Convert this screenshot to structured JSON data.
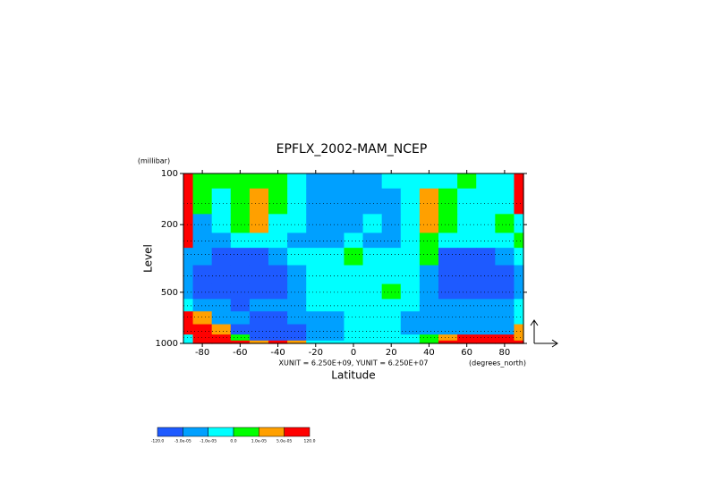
{
  "chart_data": {
    "type": "contour",
    "title": "EPFLX_2002-MAM_NCEP",
    "y_unit": "(millibar)",
    "y_label": "Level",
    "x_label": "Latitude",
    "x_unit": "(degrees_north)",
    "annotation": "XUNIT = 6.250E+09, YUNIT = 6.250E+07",
    "xlim": [
      -90,
      90
    ],
    "xticks": [
      -80,
      -60,
      -40,
      -20,
      0,
      20,
      40,
      60,
      80
    ],
    "ylim": [
      1000,
      100
    ],
    "yticks": [
      100,
      200,
      500,
      1000
    ],
    "log_y": true,
    "x": [
      -90,
      -80,
      -70,
      -60,
      -50,
      -40,
      -30,
      -20,
      -10,
      0,
      10,
      20,
      30,
      40,
      50,
      60,
      70,
      80,
      90
    ],
    "y": [
      100,
      150,
      200,
      250,
      300,
      400,
      500,
      600,
      700,
      850,
      925,
      1000
    ],
    "z": [
      [
        8e-05,
        5e-06,
        5e-06,
        5e-06,
        5e-06,
        5e-06,
        -5e-06,
        -3e-05,
        -3e-05,
        -3e-05,
        -3e-05,
        -5e-06,
        -5e-06,
        -5e-06,
        -5e-06,
        5e-06,
        -5e-06,
        -5e-06,
        8e-05
      ],
      [
        8e-05,
        5e-06,
        -5e-06,
        5e-06,
        3e-05,
        5e-06,
        -5e-06,
        -3e-05,
        -3e-05,
        -3e-05,
        -3e-05,
        -3e-05,
        -5e-06,
        3e-05,
        5e-06,
        -5e-06,
        -5e-06,
        -5e-06,
        8e-05
      ],
      [
        8e-05,
        -3e-05,
        -5e-06,
        5e-06,
        3e-05,
        -5e-06,
        -5e-06,
        -3e-05,
        -3e-05,
        -3e-05,
        -5e-06,
        -3e-05,
        -5e-06,
        3e-05,
        5e-06,
        -5e-06,
        -5e-06,
        5e-06,
        -5e-06
      ],
      [
        8e-05,
        -3e-05,
        -3e-05,
        -5e-06,
        -5e-06,
        -5e-06,
        -3e-05,
        -3e-05,
        -3e-05,
        -5e-06,
        -3e-05,
        -3e-05,
        -5e-06,
        5e-06,
        -5e-06,
        -5e-06,
        -5e-06,
        -5e-06,
        5e-06
      ],
      [
        -3e-05,
        -3e-05,
        -8e-05,
        -8e-05,
        -8e-05,
        -3e-05,
        -5e-06,
        -5e-06,
        -5e-06,
        5e-06,
        -5e-06,
        -5e-06,
        -5e-06,
        5e-06,
        -8e-05,
        -8e-05,
        -8e-05,
        -3e-05,
        -5e-06
      ],
      [
        -3e-05,
        -8e-05,
        -8e-05,
        -8e-05,
        -8e-05,
        -8e-05,
        -3e-05,
        -5e-06,
        -5e-06,
        -5e-06,
        -5e-06,
        -5e-06,
        -5e-06,
        -3e-05,
        -8e-05,
        -8e-05,
        -8e-05,
        -8e-05,
        -3e-05
      ],
      [
        -3e-05,
        -8e-05,
        -8e-05,
        -8e-05,
        -8e-05,
        -8e-05,
        -3e-05,
        -5e-06,
        -5e-06,
        -5e-06,
        -5e-06,
        5e-06,
        -5e-06,
        -3e-05,
        -8e-05,
        -8e-05,
        -8e-05,
        -8e-05,
        -3e-05
      ],
      [
        -5e-06,
        -3e-05,
        -3e-05,
        -8e-05,
        -3e-05,
        -3e-05,
        -3e-05,
        -5e-06,
        -5e-06,
        -5e-06,
        -5e-06,
        -5e-06,
        -5e-06,
        -3e-05,
        -3e-05,
        -3e-05,
        -3e-05,
        -3e-05,
        -5e-06
      ],
      [
        8e-05,
        3e-05,
        -3e-05,
        -3e-05,
        -8e-05,
        -8e-05,
        -3e-05,
        -3e-05,
        -3e-05,
        -5e-06,
        -5e-06,
        -5e-06,
        -3e-05,
        -3e-05,
        -3e-05,
        -3e-05,
        -3e-05,
        -3e-05,
        -5e-06
      ],
      [
        8e-05,
        8e-05,
        3e-05,
        -8e-05,
        -8e-05,
        -8e-05,
        -8e-05,
        -3e-05,
        -3e-05,
        -5e-06,
        -5e-06,
        -5e-06,
        -3e-05,
        -3e-05,
        -3e-05,
        -3e-05,
        -3e-05,
        -3e-05,
        3e-05
      ],
      [
        -5e-06,
        8e-05,
        8e-05,
        5e-06,
        -8e-05,
        -8e-05,
        -8e-05,
        -3e-05,
        -3e-05,
        -5e-06,
        -5e-06,
        -5e-06,
        -5e-06,
        5e-06,
        3e-05,
        8e-05,
        8e-05,
        8e-05,
        3e-05
      ],
      [
        -5e-06,
        8e-05,
        8e-05,
        8e-05,
        3e-05,
        8e-05,
        3e-05,
        -5e-06,
        -5e-06,
        -5e-06,
        -5e-06,
        -5e-06,
        -5e-06,
        5e-06,
        8e-05,
        8e-05,
        8e-05,
        8e-05,
        8e-05
      ]
    ],
    "colorbar": {
      "levels": [
        {
          "value": -120,
          "label": "-120.0"
        },
        {
          "value": -5e-05,
          "label": "-5.0e-05"
        },
        {
          "value": -1e-05,
          "label": "-1.0e-05"
        },
        {
          "value": 0,
          "label": "0.0"
        },
        {
          "value": 1e-05,
          "label": "1.0e-05"
        },
        {
          "value": 5e-05,
          "label": "5.0e-05"
        },
        {
          "value": 120,
          "label": "120.0"
        }
      ],
      "colors": [
        "#1e5aff",
        "#00a0ff",
        "#00ffff",
        "#00ff00",
        "#ffa000",
        "#ff0000"
      ]
    }
  }
}
